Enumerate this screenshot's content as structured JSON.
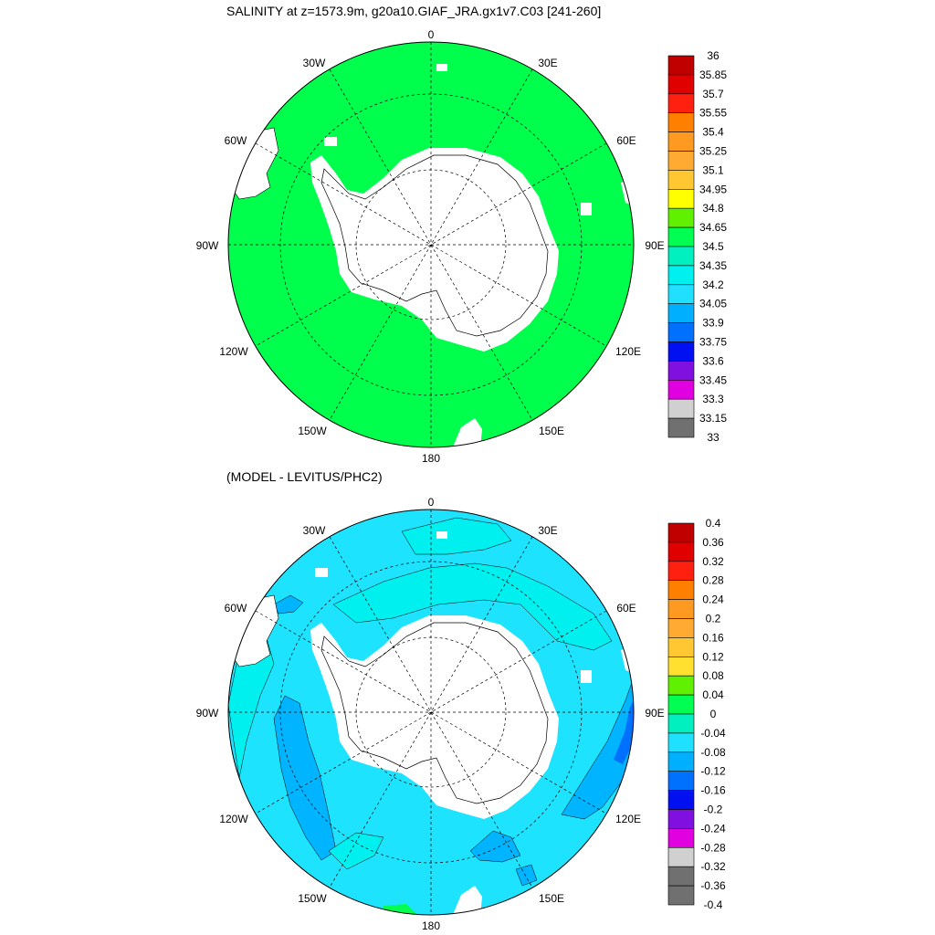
{
  "top": {
    "title": "SALINITY at z=1573.9m, g20a10.GIAF_JRA.gx1v7.C03 [241-260]",
    "lon_labels": [
      "0",
      "30E",
      "60E",
      "90E",
      "120E",
      "150E",
      "180",
      "150W",
      "120W",
      "90W",
      "60W",
      "30W"
    ],
    "colorbar": {
      "labels": [
        "36",
        "35.85",
        "35.7",
        "35.55",
        "35.4",
        "35.25",
        "35.1",
        "34.95",
        "34.8",
        "34.65",
        "34.5",
        "34.35",
        "34.2",
        "34.05",
        "33.9",
        "33.75",
        "33.6",
        "33.45",
        "33.3",
        "33.15",
        "33"
      ],
      "colors": [
        "#c00000",
        "#e00000",
        "#ff2010",
        "#ff8000",
        "#ff9a20",
        "#ffaa33",
        "#ffc833",
        "#ffff00",
        "#60f000",
        "#00ff50",
        "#00f0c0",
        "#00f0f0",
        "#20dfff",
        "#00b0ff",
        "#0070ff",
        "#0010f0",
        "#8010e0",
        "#e000e0",
        "#d0d0d0",
        "#707070"
      ]
    },
    "field_color": "#00ff4c"
  },
  "bottom": {
    "title": "(MODEL - LEVITUS/PHC2)",
    "lon_labels": [
      "0",
      "30E",
      "60E",
      "90E",
      "120E",
      "150E",
      "180",
      "150W",
      "120W",
      "90W",
      "60W",
      "30W"
    ],
    "colorbar": {
      "labels": [
        "0.4",
        "0.36",
        "0.32",
        "0.28",
        "0.24",
        "0.2",
        "0.16",
        "0.12",
        "0.08",
        "0.04",
        "0",
        "-0.04",
        "-0.08",
        "-0.12",
        "-0.16",
        "-0.2",
        "-0.24",
        "-0.28",
        "-0.32",
        "-0.36",
        "-0.4"
      ],
      "colors": [
        "#c00000",
        "#e00000",
        "#ff2010",
        "#ff8000",
        "#ff9a20",
        "#ffaa33",
        "#ffc833",
        "#ffe030",
        "#60f000",
        "#00ff50",
        "#00f0c0",
        "#20e0ff",
        "#00b0ff",
        "#0070ff",
        "#0010f0",
        "#8010e0",
        "#e000e0",
        "#d0d0d0",
        "#707070",
        "#707070"
      ]
    },
    "field_color": "#1ee3ff",
    "anomaly_colors": {
      "cyan": "#00f0f0",
      "blue": "#00b4ff",
      "deep": "#0070ff",
      "green": "#00ff50"
    }
  }
}
